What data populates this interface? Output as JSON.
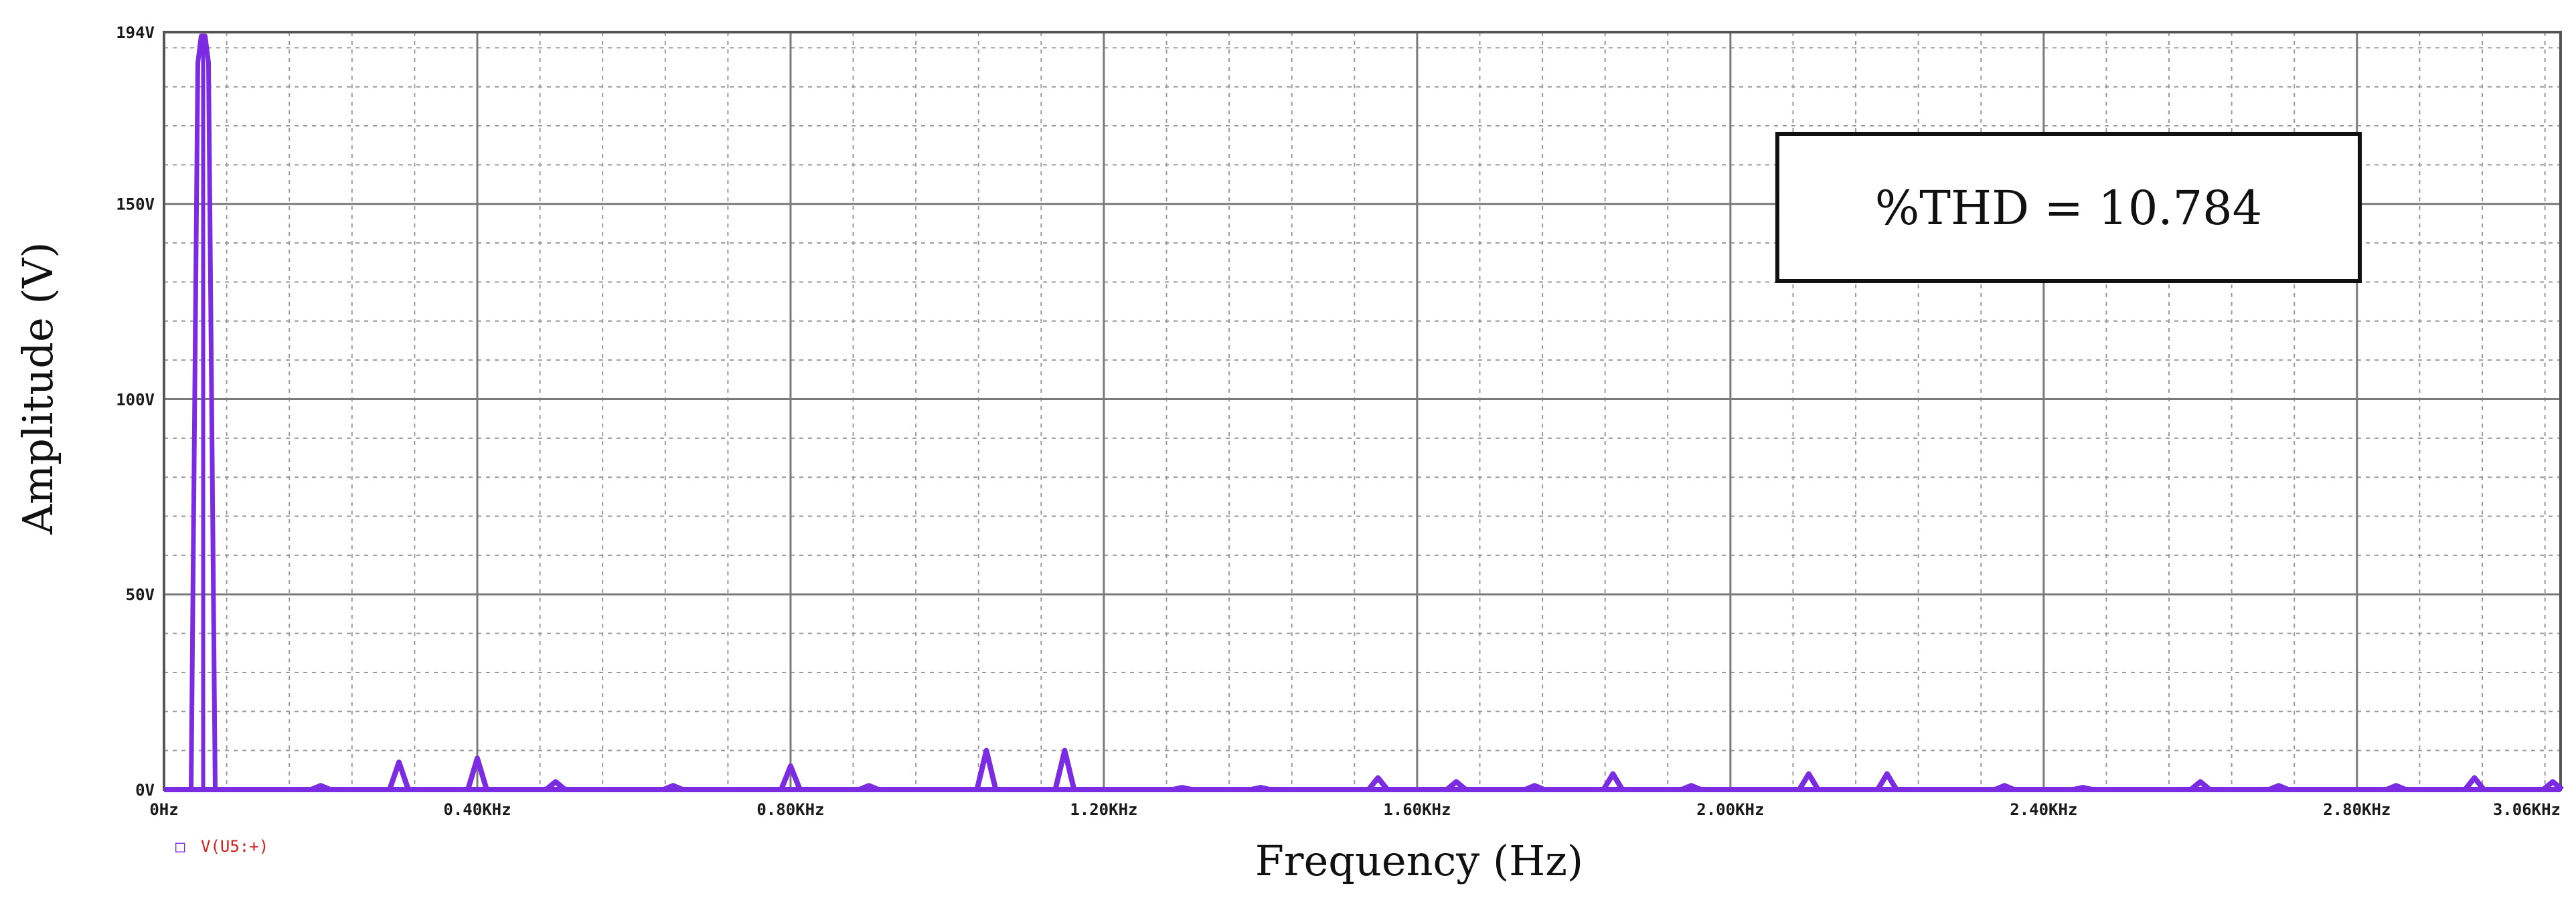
{
  "chart_data": {
    "type": "line",
    "xlabel": "Frequency (Hz)",
    "ylabel": "Amplitude (V)",
    "xlim": [
      0,
      3.06
    ],
    "ylim": [
      0,
      194
    ],
    "x_unit": "KHz",
    "grid": true,
    "x_ticks": [
      {
        "v": 0.0,
        "label": "0Hz"
      },
      {
        "v": 0.4,
        "label": "0.40KHz"
      },
      {
        "v": 0.8,
        "label": "0.80KHz"
      },
      {
        "v": 1.2,
        "label": "1.20KHz"
      },
      {
        "v": 1.6,
        "label": "1.60KHz"
      },
      {
        "v": 2.0,
        "label": "2.00KHz"
      },
      {
        "v": 2.4,
        "label": "2.40KHz"
      },
      {
        "v": 2.8,
        "label": "2.80KHz"
      },
      {
        "v": 3.06,
        "label": "3.06KHz"
      }
    ],
    "y_ticks": [
      {
        "v": 0,
        "label": "0V"
      },
      {
        "v": 50,
        "label": "50V"
      },
      {
        "v": 100,
        "label": "100V"
      },
      {
        "v": 150,
        "label": "150V"
      },
      {
        "v": 194,
        "label": "194V"
      }
    ],
    "series": [
      {
        "name": "V(U5:+)",
        "color": "#7b2be2",
        "peaks": [
          {
            "f": 0.05,
            "v": 193
          },
          {
            "f": 0.2,
            "v": 1
          },
          {
            "f": 0.3,
            "v": 7
          },
          {
            "f": 0.4,
            "v": 8
          },
          {
            "f": 0.5,
            "v": 2
          },
          {
            "f": 0.65,
            "v": 1
          },
          {
            "f": 0.8,
            "v": 6
          },
          {
            "f": 0.9,
            "v": 1
          },
          {
            "f": 1.05,
            "v": 10
          },
          {
            "f": 1.15,
            "v": 10
          },
          {
            "f": 1.3,
            "v": 0.5
          },
          {
            "f": 1.4,
            "v": 0.5
          },
          {
            "f": 1.55,
            "v": 3
          },
          {
            "f": 1.65,
            "v": 2
          },
          {
            "f": 1.75,
            "v": 1
          },
          {
            "f": 1.85,
            "v": 4
          },
          {
            "f": 1.95,
            "v": 1
          },
          {
            "f": 2.1,
            "v": 4
          },
          {
            "f": 2.2,
            "v": 4
          },
          {
            "f": 2.35,
            "v": 1
          },
          {
            "f": 2.45,
            "v": 0.5
          },
          {
            "f": 2.6,
            "v": 2
          },
          {
            "f": 2.7,
            "v": 1
          },
          {
            "f": 2.85,
            "v": 1
          },
          {
            "f": 2.95,
            "v": 3
          },
          {
            "f": 3.05,
            "v": 2
          }
        ]
      }
    ],
    "annotation": "%THD = 10.784",
    "legend_marker": "□"
  }
}
